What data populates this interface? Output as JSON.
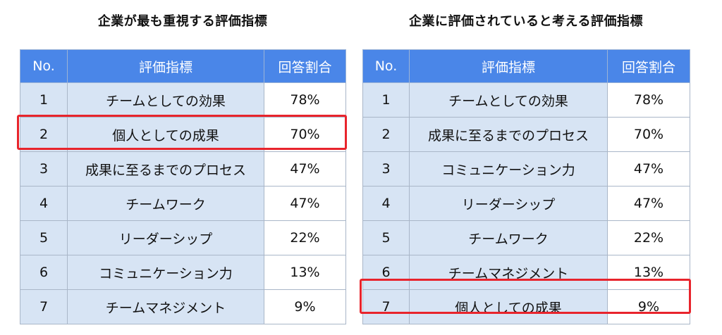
{
  "left": {
    "title": "企業が最も重視する評価指標",
    "headers": [
      "No.",
      "評価指標",
      "回答割合"
    ],
    "rows": [
      {
        "no": "1",
        "label": "チームとしての効果",
        "pct": "78%"
      },
      {
        "no": "2",
        "label": "個人としての成果",
        "pct": "70%"
      },
      {
        "no": "3",
        "label": "成果に至るまでのプロセス",
        "pct": "47%"
      },
      {
        "no": "4",
        "label": "チームワーク",
        "pct": "47%"
      },
      {
        "no": "5",
        "label": "リーダーシップ",
        "pct": "22%"
      },
      {
        "no": "6",
        "label": "コミュニケーション力",
        "pct": "13%"
      },
      {
        "no": "7",
        "label": "チームマネジメント",
        "pct": "9%"
      }
    ],
    "highlight_color": "#e8242c",
    "highlight_row": "2"
  },
  "right": {
    "title": "企業に評価されていると考える評価指標",
    "headers": [
      "No.",
      "評価指標",
      "回答割合"
    ],
    "rows": [
      {
        "no": "1",
        "label": "チームとしての効果",
        "pct": "78%"
      },
      {
        "no": "2",
        "label": "成果に至るまでのプロセス",
        "pct": "70%"
      },
      {
        "no": "3",
        "label": "コミュニケーション力",
        "pct": "47%"
      },
      {
        "no": "4",
        "label": "リーダーシップ",
        "pct": "47%"
      },
      {
        "no": "5",
        "label": "チームワーク",
        "pct": "22%"
      },
      {
        "no": "6",
        "label": "チームマネジメント",
        "pct": "13%"
      },
      {
        "no": "7",
        "label": "個人としての成果",
        "pct": "9%"
      }
    ],
    "highlight_color": "#e8242c",
    "highlight_row": "7"
  },
  "colors": {
    "header_bg": "#4a86e8",
    "shaded_cell": "#d7e4f4"
  }
}
